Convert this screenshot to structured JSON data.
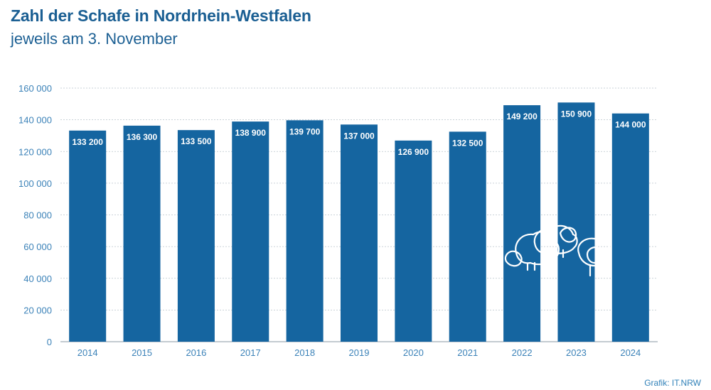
{
  "header": {
    "title": "Zahl der Schafe in Nordrhein-Westfalen",
    "subtitle": "jeweils am 3. November"
  },
  "footer": {
    "credit": "Grafik: IT.NRW"
  },
  "colors": {
    "bar": "#1565a0",
    "text": "#1b5f93",
    "axis_text": "#3b82b8",
    "grid": "#b9c3cc"
  },
  "chart_data": {
    "type": "bar",
    "title": "Zahl der Schafe in Nordrhein-Westfalen",
    "subtitle": "jeweils am 3. November",
    "categories": [
      "2014",
      "2015",
      "2016",
      "2017",
      "2018",
      "2019",
      "2020",
      "2021",
      "2022",
      "2023",
      "2024"
    ],
    "values": [
      133200,
      136300,
      133500,
      138900,
      139700,
      137000,
      126900,
      132500,
      149200,
      150900,
      144000
    ],
    "data_labels": [
      "133 200",
      "136 300",
      "133 500",
      "138 900",
      "139 700",
      "137 000",
      "126 900",
      "132 500",
      "149 200",
      "150 900",
      "144 000"
    ],
    "y_ticks": [
      0,
      20000,
      40000,
      60000,
      80000,
      100000,
      120000,
      140000,
      160000
    ],
    "y_tick_labels": [
      "0",
      "20 000",
      "40 000",
      "60 000",
      "80 000",
      "100 000",
      "120 000",
      "140 000",
      "160 000"
    ],
    "ylim": [
      0,
      160000
    ],
    "xlabel": "",
    "ylabel": "",
    "grid": true,
    "legend": "none",
    "decoration": "sheep-illustration-icon"
  }
}
